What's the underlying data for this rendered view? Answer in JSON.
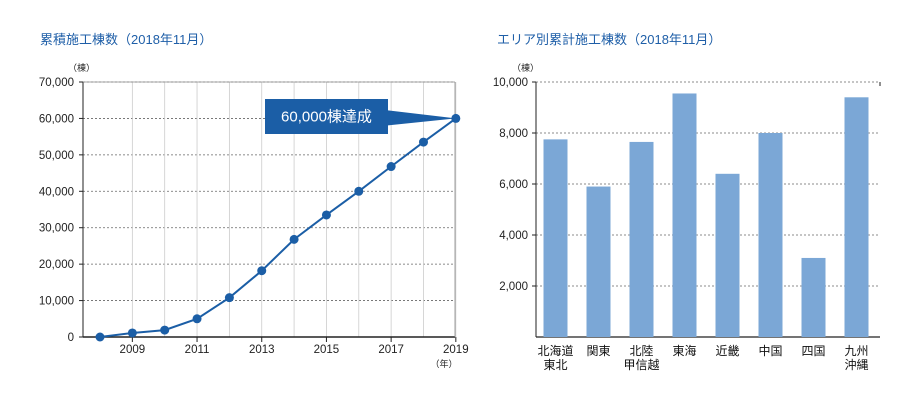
{
  "chart_data": [
    {
      "type": "line",
      "title": "累積施工棟数（2018年11月）",
      "ylabel_unit": "（棟）",
      "xlabel_unit": "（年）",
      "ylim": [
        0,
        70000
      ],
      "yticks": [
        0,
        10000,
        20000,
        30000,
        40000,
        50000,
        60000,
        70000
      ],
      "ytick_labels": [
        "0",
        "10,000",
        "20,000",
        "30,000",
        "40,000",
        "50,000",
        "60,000",
        "70,000"
      ],
      "xlim": [
        2008,
        2019.5
      ],
      "xticks": [
        2009,
        2011,
        2013,
        2015,
        2017,
        2019
      ],
      "xtick_labels": [
        "2009",
        "2011",
        "2013",
        "2015",
        "2017",
        "2019"
      ],
      "grid": "horizontal-dashed",
      "x": [
        2008,
        2009,
        2010,
        2011,
        2012,
        2013,
        2014,
        2015,
        2016,
        2017,
        2018,
        2019
      ],
      "values": [
        0,
        1100,
        1900,
        5000,
        10800,
        18200,
        26800,
        33500,
        40000,
        46800,
        53500,
        60000
      ],
      "color": "#1b5ea6",
      "annotation": {
        "text": "60,000棟達成",
        "x": 2019,
        "y": 60000
      }
    },
    {
      "type": "bar",
      "title": "エリア別累計施工棟数（2018年11月）",
      "ylabel_unit": "（棟）",
      "ylim": [
        0,
        10000
      ],
      "yticks": [
        2000,
        4000,
        6000,
        8000,
        10000
      ],
      "ytick_labels": [
        "2,000",
        "4,000",
        "6,000",
        "8,000",
        "10,000"
      ],
      "grid": "horizontal-dashed",
      "categories": [
        "北海道\n東北",
        "関東",
        "北陸\n甲信越",
        "東海",
        "近畿",
        "中国",
        "四国",
        "九州\n沖縄"
      ],
      "values": [
        7750,
        5900,
        7650,
        9550,
        6400,
        8000,
        3100,
        9400
      ],
      "color": "#7ba7d6"
    }
  ]
}
